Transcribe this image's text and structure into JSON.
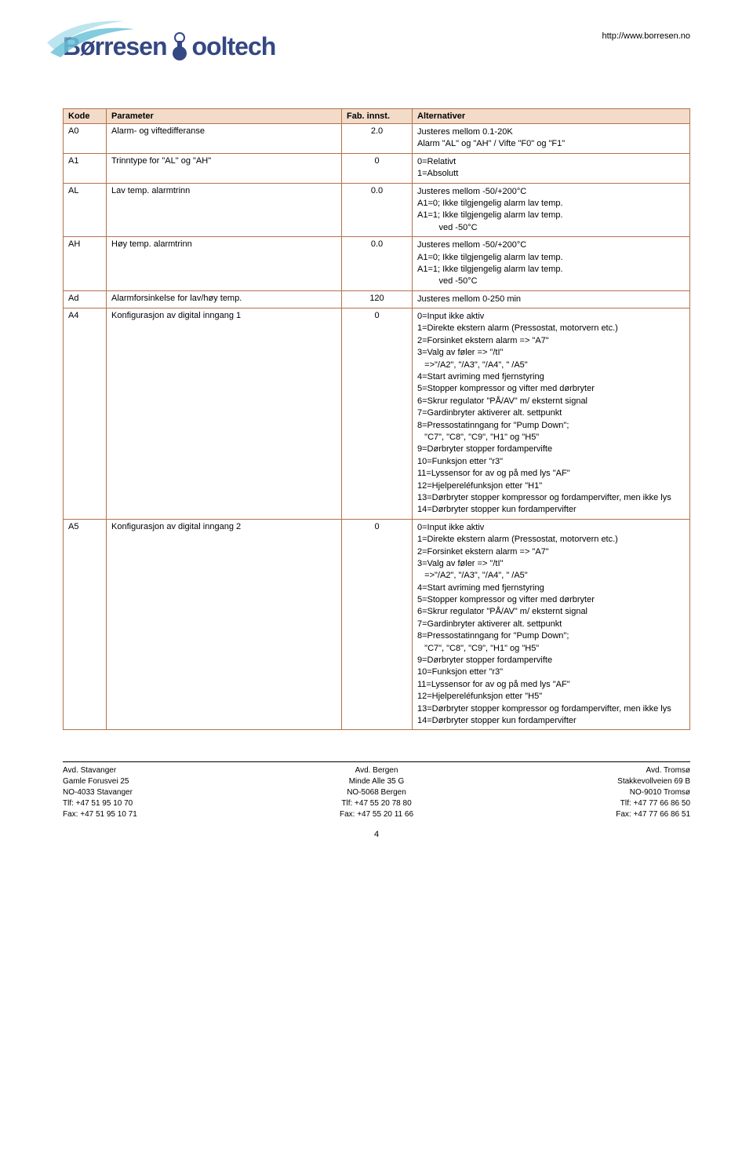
{
  "header": {
    "logo_part1": "Børresen",
    "logo_part2": "ooltech",
    "url": "http://www.borresen.no"
  },
  "table": {
    "headers": [
      "Kode",
      "Parameter",
      "Fab. innst.",
      "Alternativer"
    ],
    "rows": [
      {
        "code": "A0",
        "param": "Alarm- og viftedifferanse",
        "fab": "2.0",
        "alt": "Justeres mellom 0.1-20K\nAlarm \"AL\" og \"AH\" / Vifte \"F0\" og \"F1\""
      },
      {
        "code": "A1",
        "param": "Trinntype for \"AL\" og \"AH\"",
        "fab": "0",
        "alt": "0=Relativt\n1=Absolutt"
      },
      {
        "code": "AL",
        "param": "Lav temp. alarmtrinn",
        "fab": "0.0",
        "alt": "Justeres mellom -50/+200°C\nA1=0; Ikke tilgjengelig alarm lav temp.\nA1=1; Ikke tilgjengelig alarm lav temp.\n         ved -50°C"
      },
      {
        "code": "AH",
        "param": "Høy temp. alarmtrinn",
        "fab": "0.0",
        "alt": "Justeres mellom -50/+200°C\nA1=0; Ikke tilgjengelig alarm lav temp.\nA1=1; Ikke tilgjengelig alarm lav temp.\n         ved -50°C"
      },
      {
        "code": "Ad",
        "param": "Alarmforsinkelse for lav/høy temp.",
        "fab": "120",
        "alt": "Justeres mellom 0-250 min"
      },
      {
        "code": "A4",
        "param": "Konfigurasjon av digital inngang 1",
        "fab": "0",
        "alt": "0=Input ikke aktiv\n1=Direkte ekstern alarm (Pressostat, motorvern etc.)\n2=Forsinket ekstern alarm => \"A7\"\n3=Valg av føler => \"/tI\"\n   =>\"/A2\", \"/A3\", \"/A4\", \" /A5\"\n4=Start avriming med fjernstyring\n5=Stopper kompressor og vifter med dørbryter\n6=Skrur regulator \"PÅ/AV\" m/ eksternt signal\n7=Gardinbryter aktiverer alt. settpunkt\n8=Pressostatinngang for \"Pump Down\";\n   \"C7\", \"C8\", \"C9\", \"H1\" og \"H5\"\n9=Dørbryter stopper fordampervifte\n10=Funksjon etter \"r3\"\n11=Lyssensor for av og på med lys \"AF\"\n12=Hjelpereléfunksjon etter \"H1\"\n13=Dørbryter stopper kompressor og fordampervifter, men ikke lys\n14=Dørbryter stopper kun fordampervifter"
      },
      {
        "code": "A5",
        "param": "Konfigurasjon av digital inngang 2",
        "fab": "0",
        "alt": "0=Input ikke aktiv\n1=Direkte ekstern alarm (Pressostat, motorvern etc.)\n2=Forsinket ekstern alarm => \"A7\"\n3=Valg av føler => \"/tI\"\n   =>\"/A2\", \"/A3\", \"/A4\", \" /A5\"\n4=Start avriming med fjernstyring\n5=Stopper kompressor og vifter med dørbryter\n6=Skrur regulator \"PÅ/AV\" m/ eksternt signal\n7=Gardinbryter aktiverer alt. settpunkt\n8=Pressostatinngang for \"Pump Down\";\n   \"C7\", \"C8\", \"C9\", \"H1\" og \"H5\"\n9=Dørbryter stopper fordampervifte\n10=Funksjon etter \"r3\"\n11=Lyssensor for av og på med lys \"AF\"\n12=Hjelpereléfunksjon etter \"H5\"\n13=Dørbryter stopper kompressor og fordampervifter, men ikke lys\n14=Dørbryter stopper kun fordampervifter"
      }
    ]
  },
  "footer": {
    "cols": [
      {
        "title": "Avd. Stavanger",
        "lines": [
          "Gamle Forusvei 25",
          "NO-4033 Stavanger",
          "Tlf: +47 51 95 10 70",
          "Fax: +47 51 95 10 71"
        ]
      },
      {
        "title": "Avd. Bergen",
        "lines": [
          "Minde Alle 35 G",
          "NO-5068 Bergen",
          "Tlf: +47 55 20 78 80",
          "Fax: +47 55 20 11 66"
        ]
      },
      {
        "title": "Avd. Tromsø",
        "lines": [
          "Stakkevollveien 69 B",
          "NO-9010 Tromsø",
          "Tlf: +47 77 66 86 50",
          "Fax: +47 77 66 86 51"
        ]
      }
    ],
    "page_num": "4"
  },
  "colors": {
    "table_border": "#b2724a",
    "table_header_bg": "#f3dbc9",
    "logo_color": "#344883",
    "swoosh_color": "#6dc2d9"
  }
}
